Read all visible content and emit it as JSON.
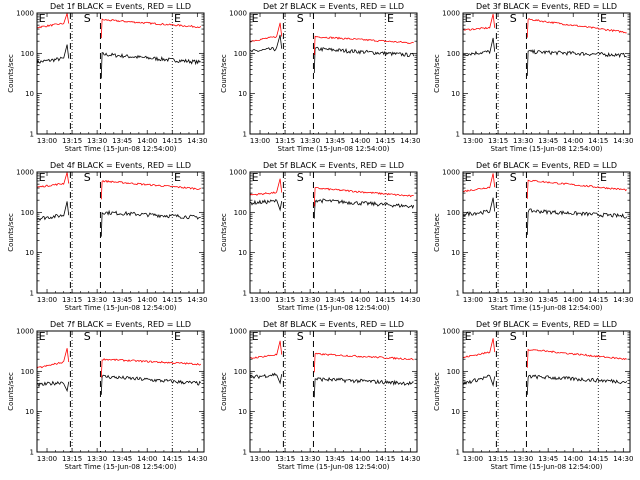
{
  "chart_data": [
    {
      "type": "line",
      "title": "Det 1f BLACK = Events, RED = LLD",
      "xlabel": "Start Time (15-Jun-08 12:54:00)",
      "ylabel": "Counts/sec",
      "x_ticks": [
        "13:00",
        "13:15",
        "13:30",
        "13:45",
        "14:00",
        "14:15",
        "14:30"
      ],
      "y_ticks": [
        "1",
        "10",
        "100",
        "1000"
      ],
      "yscale": "log",
      "ylim": [
        1,
        1000
      ],
      "xlim": [
        "12:54",
        "14:34"
      ],
      "markers": [
        "E",
        "S",
        "E"
      ],
      "marker_times": [
        "12:55",
        "13:22",
        "14:16"
      ],
      "gap": [
        "13:14",
        "13:32"
      ],
      "series": [
        {
          "name": "BLACK = Events",
          "color": "#000000",
          "pre": [
            60,
            75
          ],
          "post": [
            95,
            60
          ],
          "spike": "up"
        },
        {
          "name": "RED = LLD",
          "color": "#ff0000",
          "pre": [
            440,
            550
          ],
          "post": [
            680,
            450
          ],
          "spike": "up"
        }
      ]
    },
    {
      "type": "line",
      "title": "Det 2f BLACK = Events, RED = LLD",
      "xlabel": "Start Time (15-Jun-08 12:54:00)",
      "ylabel": "Counts/sec",
      "x_ticks": [
        "13:00",
        "13:15",
        "13:30",
        "13:45",
        "14:00",
        "14:15",
        "14:30"
      ],
      "y_ticks": [
        "1",
        "10",
        "100",
        "1000"
      ],
      "yscale": "log",
      "ylim": [
        1,
        1000
      ],
      "xlim": [
        "12:54",
        "14:34"
      ],
      "markers": [
        "E",
        "S",
        "E"
      ],
      "marker_times": [
        "12:55",
        "13:22",
        "14:16"
      ],
      "gap": [
        "13:14",
        "13:32"
      ],
      "series": [
        {
          "name": "BLACK = Events",
          "color": "#000000",
          "pre": [
            110,
            130
          ],
          "post": [
            130,
            90
          ],
          "spike": "up"
        },
        {
          "name": "RED = LLD",
          "color": "#ff0000",
          "pre": [
            200,
            260
          ],
          "post": [
            260,
            180
          ],
          "spike": "up"
        }
      ]
    },
    {
      "type": "line",
      "title": "Det 3f BLACK = Events, RED = LLD",
      "xlabel": "Start Time (15-Jun-08 12:54:00)",
      "ylabel": "Counts/sec",
      "x_ticks": [
        "13:00",
        "13:15",
        "13:30",
        "13:45",
        "14:00",
        "14:15",
        "14:30"
      ],
      "y_ticks": [
        "1",
        "10",
        "100",
        "1000"
      ],
      "yscale": "log",
      "ylim": [
        1,
        1000
      ],
      "xlim": [
        "12:54",
        "14:34"
      ],
      "markers": [
        "E",
        "S",
        "E"
      ],
      "marker_times": [
        "12:55",
        "13:22",
        "14:16"
      ],
      "gap": [
        "13:14",
        "13:32"
      ],
      "series": [
        {
          "name": "BLACK = Events",
          "color": "#000000",
          "pre": [
            95,
            110
          ],
          "post": [
            110,
            90
          ],
          "spike": "up"
        },
        {
          "name": "RED = LLD",
          "color": "#ff0000",
          "pre": [
            380,
            430
          ],
          "post": [
            700,
            330
          ],
          "spike": "up"
        }
      ]
    },
    {
      "type": "line",
      "title": "Det 4f BLACK = Events, RED = LLD",
      "xlabel": "Start Time (15-Jun-08 12:54:00)",
      "ylabel": "Counts/sec",
      "x_ticks": [
        "13:00",
        "13:15",
        "13:30",
        "13:45",
        "14:00",
        "14:15",
        "14:30"
      ],
      "y_ticks": [
        "1",
        "10",
        "100",
        "1000"
      ],
      "yscale": "log",
      "ylim": [
        1,
        1000
      ],
      "xlim": [
        "12:54",
        "14:34"
      ],
      "markers": [
        "E",
        "S",
        "E"
      ],
      "marker_times": [
        "12:55",
        "13:22",
        "14:16"
      ],
      "gap": [
        "13:14",
        "13:32"
      ],
      "series": [
        {
          "name": "BLACK = Events",
          "color": "#000000",
          "pre": [
            70,
            85
          ],
          "post": [
            100,
            75
          ],
          "spike": "up"
        },
        {
          "name": "RED = LLD",
          "color": "#ff0000",
          "pre": [
            420,
            520
          ],
          "post": [
            600,
            380
          ],
          "spike": "up"
        }
      ]
    },
    {
      "type": "line",
      "title": "Det 5f BLACK = Events, RED = LLD",
      "xlabel": "Start Time (15-Jun-08 12:54:00)",
      "ylabel": "Counts/sec",
      "x_ticks": [
        "13:00",
        "13:15",
        "13:30",
        "13:45",
        "14:00",
        "14:15",
        "14:30"
      ],
      "y_ticks": [
        "1",
        "10",
        "100",
        "1000"
      ],
      "yscale": "log",
      "ylim": [
        1,
        1000
      ],
      "xlim": [
        "12:54",
        "14:34"
      ],
      "markers": [
        "E",
        "S",
        "E"
      ],
      "marker_times": [
        "12:55",
        "13:22",
        "14:16"
      ],
      "gap": [
        "13:14",
        "13:32"
      ],
      "series": [
        {
          "name": "BLACK = Events",
          "color": "#000000",
          "pre": [
            170,
            190
          ],
          "post": [
            200,
            140
          ],
          "spike": "down"
        },
        {
          "name": "RED = LLD",
          "color": "#ff0000",
          "pre": [
            270,
            310
          ],
          "post": [
            400,
            250
          ],
          "spike": "up"
        }
      ]
    },
    {
      "type": "line",
      "title": "Det 6f BLACK = Events, RED = LLD",
      "xlabel": "Start Time (15-Jun-08 12:54:00)",
      "ylabel": "Counts/sec",
      "x_ticks": [
        "13:00",
        "13:15",
        "13:30",
        "13:45",
        "14:00",
        "14:15",
        "14:30"
      ],
      "y_ticks": [
        "1",
        "10",
        "100",
        "1000"
      ],
      "yscale": "log",
      "ylim": [
        1,
        1000
      ],
      "xlim": [
        "12:54",
        "14:34"
      ],
      "markers": [
        "E",
        "S",
        "E"
      ],
      "marker_times": [
        "12:55",
        "13:22",
        "14:16"
      ],
      "gap": [
        "13:14",
        "13:32"
      ],
      "series": [
        {
          "name": "BLACK = Events",
          "color": "#000000",
          "pre": [
            90,
            105
          ],
          "post": [
            110,
            80
          ],
          "spike": "up"
        },
        {
          "name": "RED = LLD",
          "color": "#ff0000",
          "pre": [
            330,
            420
          ],
          "post": [
            620,
            360
          ],
          "spike": "up"
        }
      ]
    },
    {
      "type": "line",
      "title": "Det 7f BLACK = Events, RED = LLD",
      "xlabel": "Start Time (15-Jun-08 12:54:00)",
      "ylabel": "Counts/sec",
      "x_ticks": [
        "13:00",
        "13:15",
        "13:30",
        "13:45",
        "14:00",
        "14:15",
        "14:30"
      ],
      "y_ticks": [
        "1",
        "10",
        "100",
        "1000"
      ],
      "yscale": "log",
      "ylim": [
        1,
        1000
      ],
      "xlim": [
        "12:54",
        "14:34"
      ],
      "markers": [
        "E",
        "S",
        "E"
      ],
      "marker_times": [
        "12:55",
        "13:22",
        "14:16"
      ],
      "gap": [
        "13:14",
        "13:32"
      ],
      "series": [
        {
          "name": "BLACK = Events",
          "color": "#000000",
          "pre": [
            45,
            55
          ],
          "post": [
            75,
            50
          ],
          "spike": "down"
        },
        {
          "name": "RED = LLD",
          "color": "#ff0000",
          "pre": [
            120,
            170
          ],
          "post": [
            200,
            150
          ],
          "spike": "up"
        }
      ]
    },
    {
      "type": "line",
      "title": "Det 8f BLACK = Events, RED = LLD",
      "xlabel": "Start Time (15-Jun-08 12:54:00)",
      "ylabel": "Counts/sec",
      "x_ticks": [
        "13:00",
        "13:15",
        "13:30",
        "13:45",
        "14:00",
        "14:15",
        "14:30"
      ],
      "y_ticks": [
        "1",
        "10",
        "100",
        "1000"
      ],
      "yscale": "log",
      "ylim": [
        1,
        1000
      ],
      "xlim": [
        "12:54",
        "14:34"
      ],
      "markers": [
        "E",
        "S",
        "E"
      ],
      "marker_times": [
        "12:55",
        "13:22",
        "14:16"
      ],
      "gap": [
        "13:14",
        "13:32"
      ],
      "series": [
        {
          "name": "BLACK = Events",
          "color": "#000000",
          "pre": [
            70,
            85
          ],
          "post": [
            65,
            50
          ],
          "spike": "down"
        },
        {
          "name": "RED = LLD",
          "color": "#ff0000",
          "pre": [
            210,
            260
          ],
          "post": [
            270,
            200
          ],
          "spike": "up"
        }
      ]
    },
    {
      "type": "line",
      "title": "Det 9f BLACK = Events, RED = LLD",
      "xlabel": "Start Time (15-Jun-08 12:54:00)",
      "ylabel": "Counts/sec",
      "x_ticks": [
        "13:00",
        "13:15",
        "13:30",
        "13:45",
        "14:00",
        "14:15",
        "14:30"
      ],
      "y_ticks": [
        "1",
        "10",
        "100",
        "1000"
      ],
      "yscale": "log",
      "ylim": [
        1,
        1000
      ],
      "xlim": [
        "12:54",
        "14:34"
      ],
      "markers": [
        "E",
        "S",
        "E"
      ],
      "marker_times": [
        "12:55",
        "13:22",
        "14:16"
      ],
      "gap": [
        "13:14",
        "13:32"
      ],
      "series": [
        {
          "name": "BLACK = Events",
          "color": "#000000",
          "pre": [
            50,
            75
          ],
          "post": [
            75,
            55
          ],
          "spike": "down"
        },
        {
          "name": "RED = LLD",
          "color": "#ff0000",
          "pre": [
            220,
            300
          ],
          "post": [
            350,
            200
          ],
          "spike": "up"
        }
      ]
    }
  ]
}
